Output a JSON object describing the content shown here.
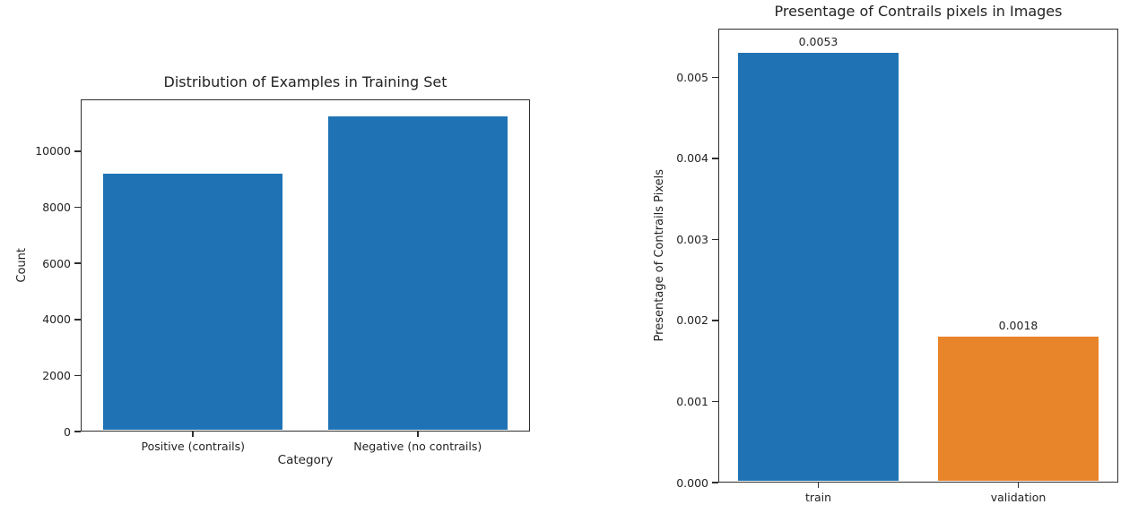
{
  "page": {
    "background_color": "#ffffff",
    "text_color": "#232323",
    "spine_color": "#2e2e2e"
  },
  "chart_data": [
    {
      "id": "training-distribution",
      "type": "bar",
      "title": "Distribution of Examples in Training Set",
      "xlabel": "Category",
      "ylabel": "Count",
      "categories": [
        "Positive (contrails)",
        "Negative (no contrails)"
      ],
      "values": [
        9200,
        11250
      ],
      "bar_colors": [
        "#1f73b4",
        "#1f73b4"
      ],
      "bar_value_labels": [],
      "ylim": [
        0,
        11850
      ],
      "yticks": [
        0,
        2000,
        4000,
        6000,
        8000,
        10000
      ],
      "ytick_labels": [
        "0",
        "2000",
        "4000",
        "6000",
        "8000",
        "10000"
      ],
      "grid": false,
      "legend": null
    },
    {
      "id": "contrail-percentage",
      "type": "bar",
      "title": "Presentage of Contrails pixels in Images",
      "xlabel": "",
      "ylabel": "Presentage of Contrails Pixels",
      "categories": [
        "train",
        "validation"
      ],
      "values": [
        0.0053,
        0.0018
      ],
      "bar_colors": [
        "#1f73b4",
        "#e8842a"
      ],
      "bar_value_labels": [
        "0.0053",
        "0.0018"
      ],
      "ylim": [
        0,
        0.0056
      ],
      "yticks": [
        0,
        0.001,
        0.002,
        0.003,
        0.004,
        0.005
      ],
      "ytick_labels": [
        "0.000",
        "0.001",
        "0.002",
        "0.003",
        "0.004",
        "0.005"
      ],
      "grid": false,
      "legend": null
    }
  ]
}
